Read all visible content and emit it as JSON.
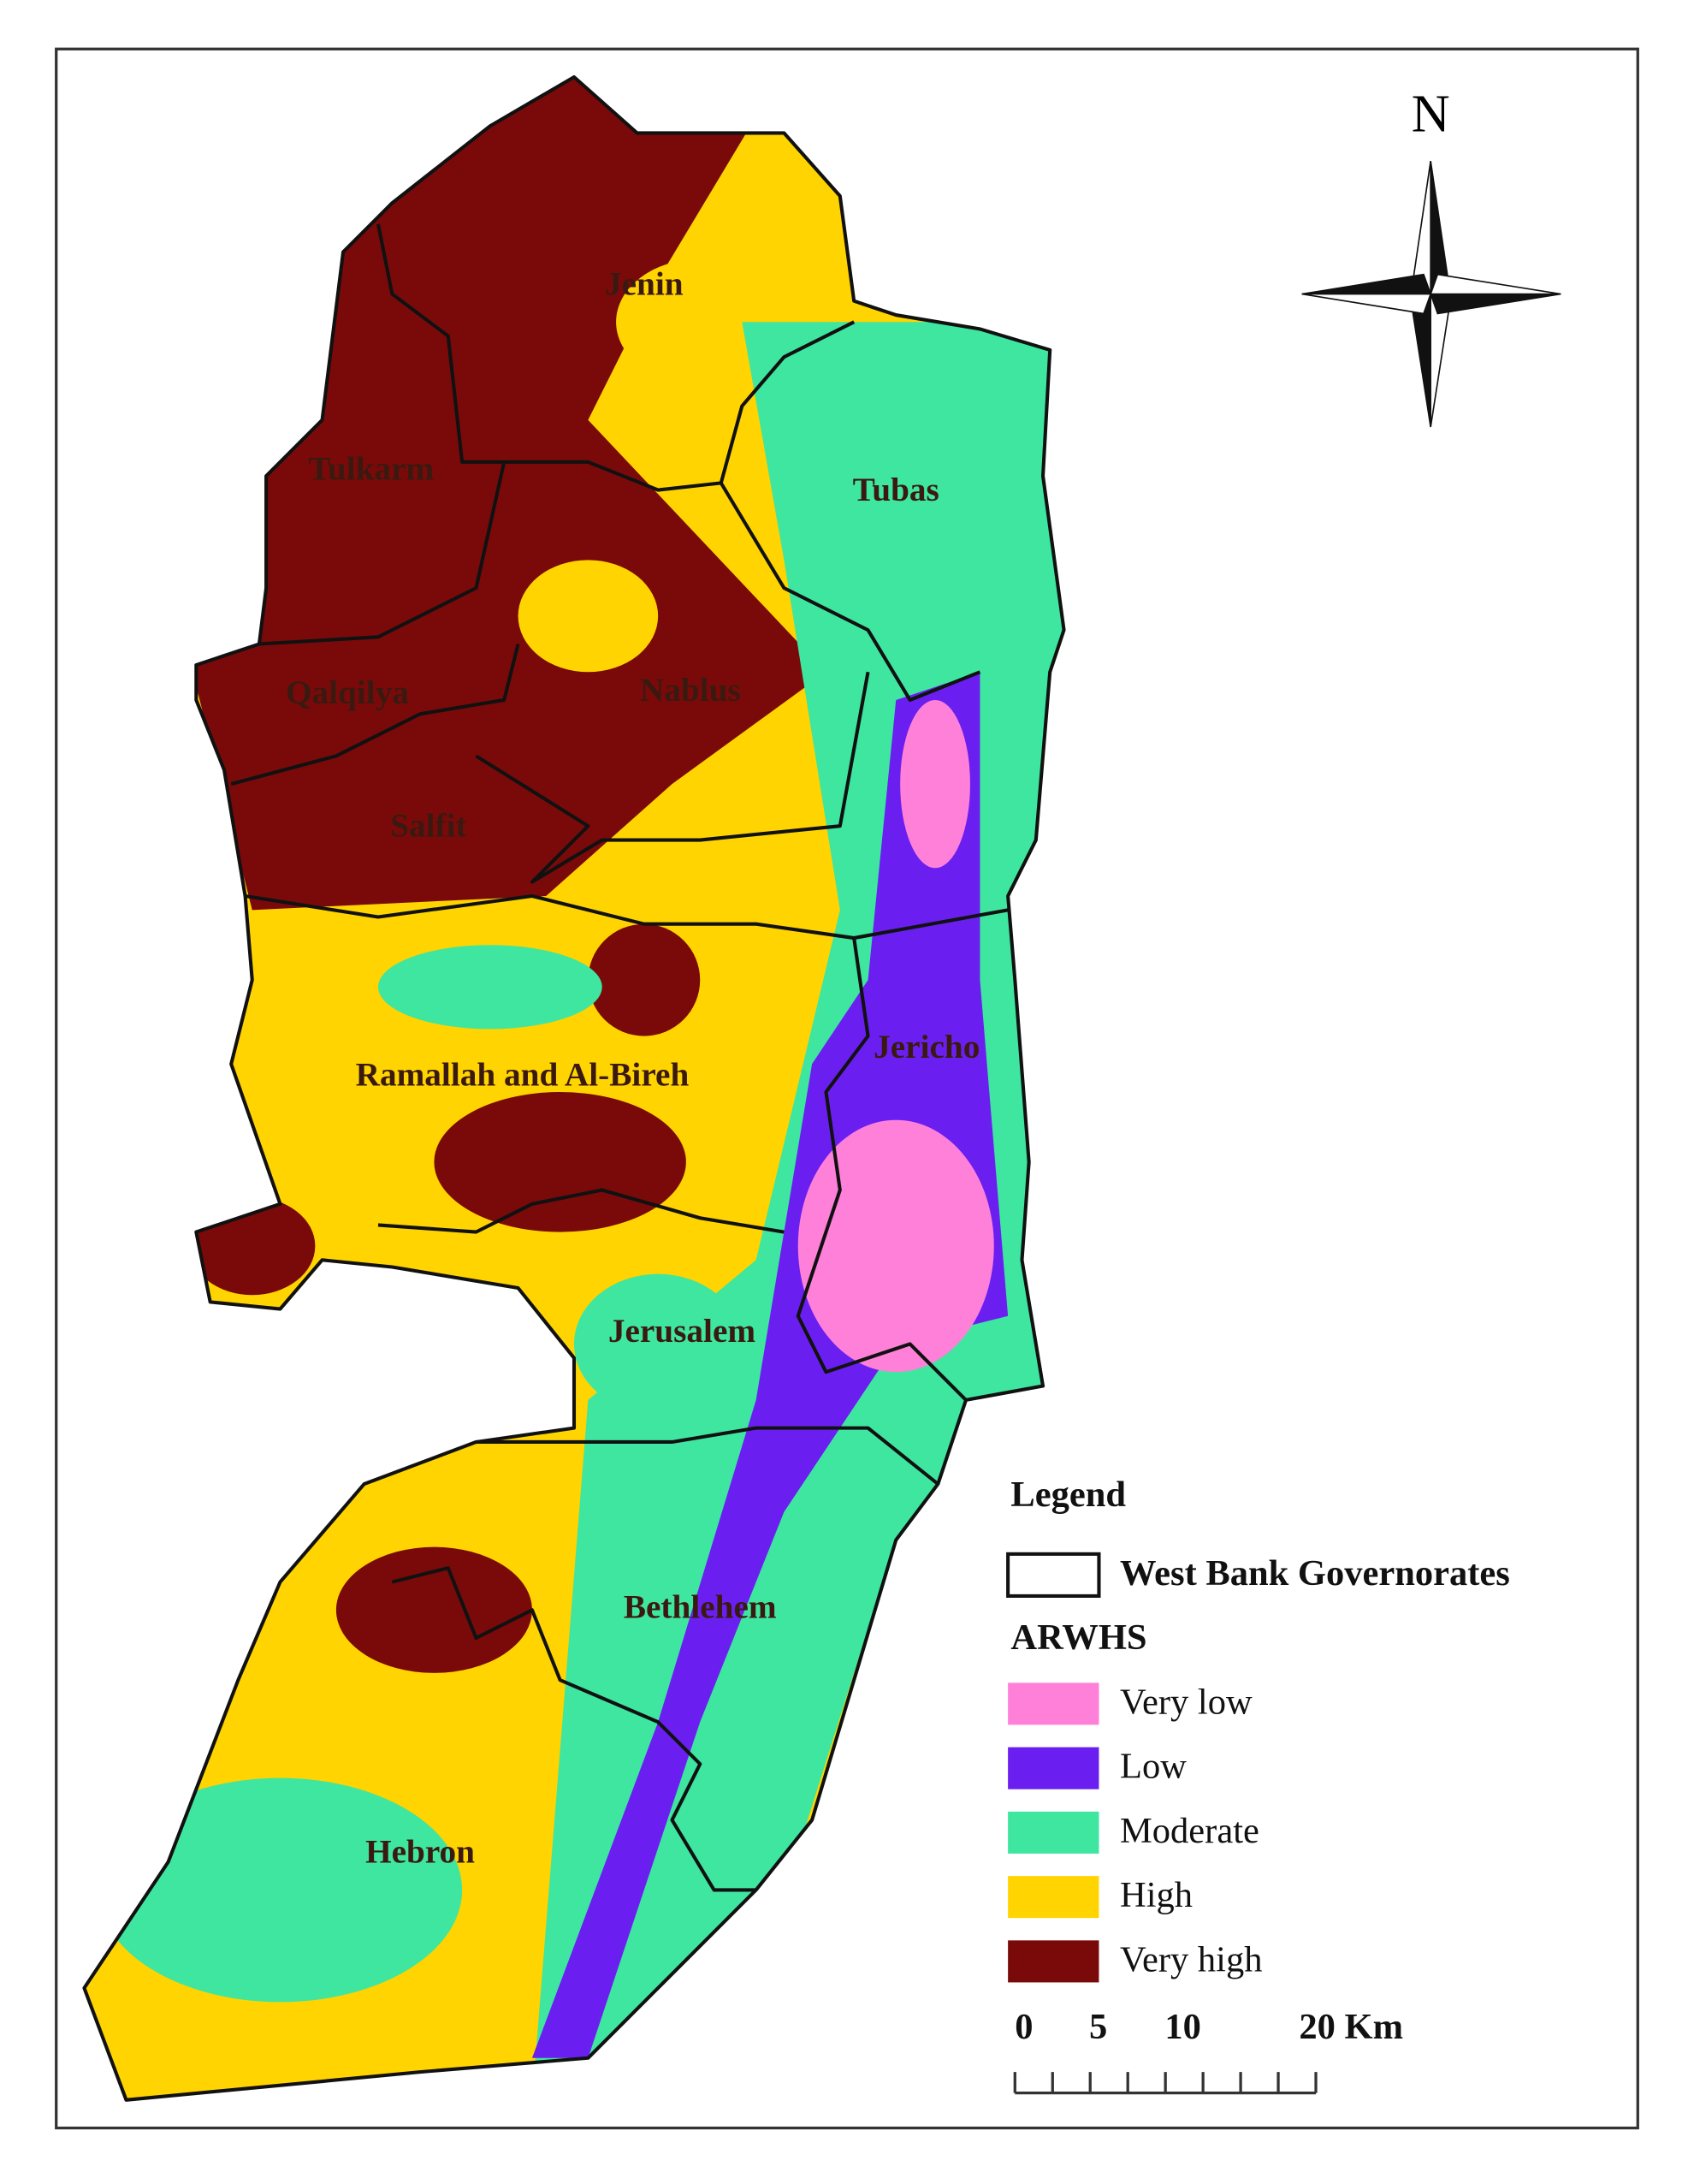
{
  "north_label": "N",
  "governorates": [
    {
      "label": "Jenin"
    },
    {
      "label": "Tubas"
    },
    {
      "label": "Tulkarm"
    },
    {
      "label": "Qalqilya"
    },
    {
      "label": "Nablus"
    },
    {
      "label": "Salfit"
    },
    {
      "label": "Jericho"
    },
    {
      "label": "Ramallah and Al-Bireh"
    },
    {
      "label": "Jerusalem"
    },
    {
      "label": "Bethlehem"
    },
    {
      "label": "Hebron"
    }
  ],
  "legend": {
    "title": "Legend",
    "boundary_label": "West Bank Governorates",
    "classes_title": "ARWHS",
    "items": [
      {
        "label": "Very low",
        "color": "#ff80d9"
      },
      {
        "label": "Low",
        "color": "#6a1ff0"
      },
      {
        "label": "Moderate",
        "color": "#3ee6a0"
      },
      {
        "label": "High",
        "color": "#ffd400"
      },
      {
        "label": "Very high",
        "color": "#7a0a0a"
      }
    ]
  },
  "scale_bar": {
    "labels": [
      "0",
      "5",
      "10",
      "20 Km"
    ]
  }
}
